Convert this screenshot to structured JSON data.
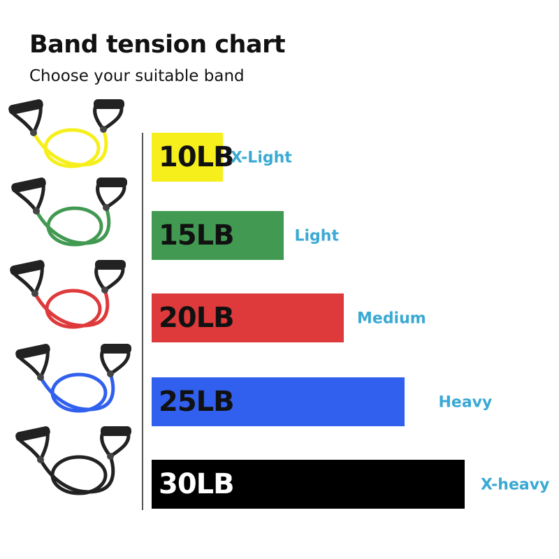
{
  "title": "Band tension chart",
  "subtitle": "Choose your suitable band",
  "chart_data": {
    "type": "bar",
    "orientation": "horizontal",
    "categories": [
      "10LB",
      "15LB",
      "20LB",
      "25LB",
      "30LB"
    ],
    "values": [
      10,
      15,
      20,
      25,
      30
    ],
    "unit": "LB",
    "levels": [
      "X-Light",
      "Light",
      "Medium",
      "Heavy",
      "X-heavy"
    ],
    "colors": [
      "#f6ef1c",
      "#429a52",
      "#df3a3b",
      "#3160ef",
      "#000000"
    ],
    "label_colors": [
      "#111111",
      "#111111",
      "#111111",
      "#111111",
      "#ffffff"
    ],
    "level_color": "#3aa9d3"
  }
}
